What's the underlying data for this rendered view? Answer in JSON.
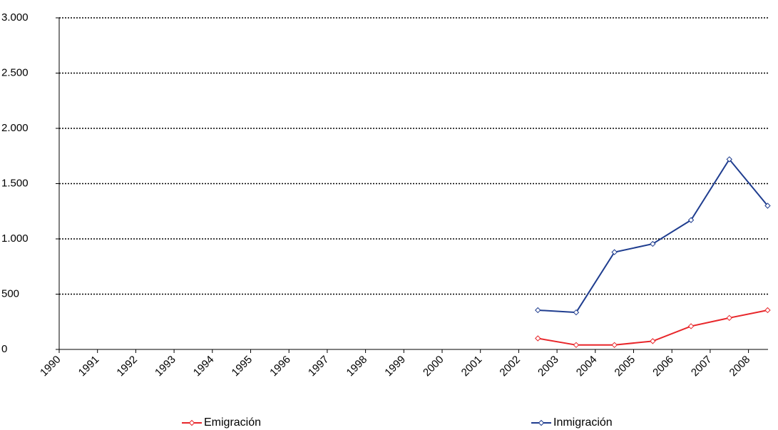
{
  "chart_data": {
    "type": "line",
    "categories": [
      "1990",
      "1991",
      "1992",
      "1993",
      "1994",
      "1995",
      "1996",
      "1997",
      "1998",
      "1999",
      "2000",
      "2001",
      "2002",
      "2003",
      "2004",
      "2005",
      "2006",
      "2007",
      "2008"
    ],
    "series": [
      {
        "name": "Emigración",
        "color": "#e8262a",
        "values": [
          null,
          null,
          null,
          null,
          null,
          null,
          null,
          null,
          null,
          null,
          null,
          null,
          100,
          40,
          40,
          75,
          210,
          285,
          355
        ]
      },
      {
        "name": "Inmigración",
        "color": "#1f3d8f",
        "values": [
          null,
          null,
          null,
          null,
          null,
          null,
          null,
          null,
          null,
          null,
          null,
          null,
          355,
          335,
          880,
          955,
          1170,
          1720,
          1300
        ]
      }
    ],
    "ylim": [
      0,
      3000
    ],
    "yticks": [
      0,
      500,
      {
        "value": 1000,
        "label": "1.000"
      },
      {
        "value": 1500,
        "label": "1.500"
      },
      {
        "value": 2000,
        "label": "2.000"
      },
      {
        "value": 2500,
        "label": "2.500"
      },
      {
        "value": 3000,
        "label": "3.000"
      }
    ],
    "grid": true,
    "legend": "bottom"
  }
}
